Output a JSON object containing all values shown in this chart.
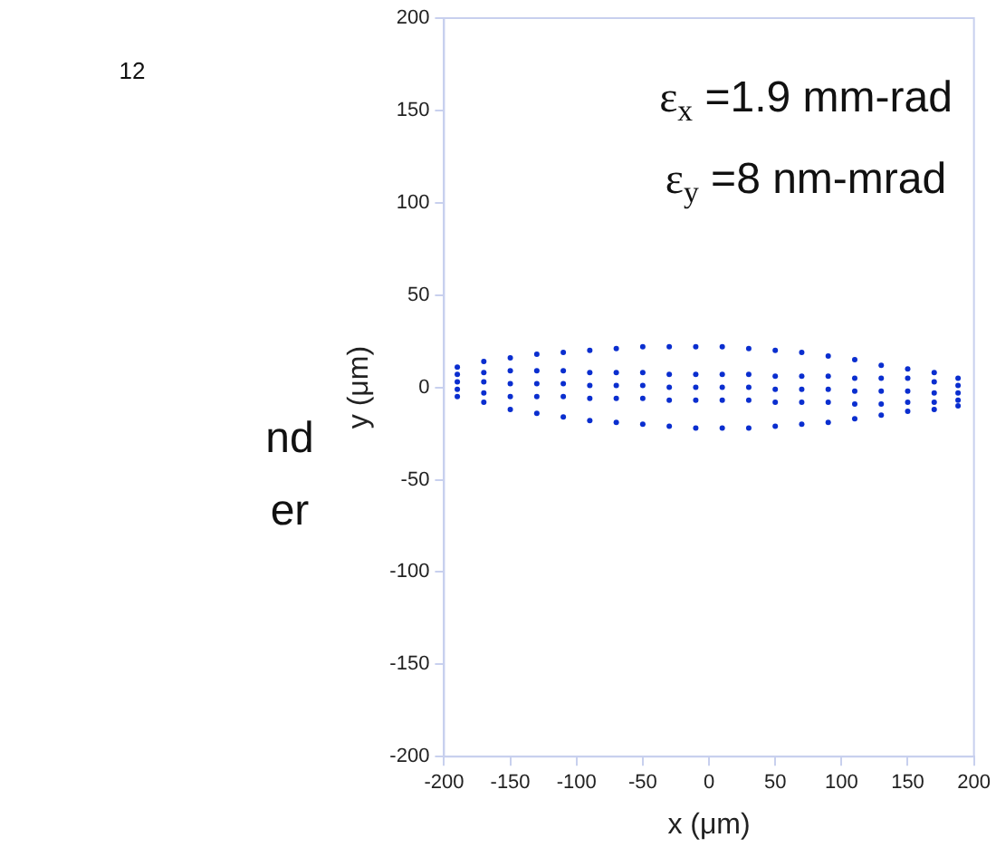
{
  "chart_data": {
    "type": "scatter",
    "xlabel": "x (μm)",
    "ylabel": "y (μm)",
    "annotations": [
      "ε$_{x}$ =1.9 mm-rad",
      "ε$_{y}$ =8 nm-mrad",
      "12",
      "nd",
      "er"
    ],
    "xlim": [
      -200,
      200
    ],
    "xticks": [
      -200,
      -150,
      -100,
      -50,
      0,
      50,
      100,
      150,
      200
    ],
    "ylim": [
      -200,
      200
    ],
    "yticks": [
      -200,
      -150,
      -100,
      -50,
      0,
      50,
      100,
      150,
      200
    ],
    "grid": false,
    "legend": false,
    "marker": "circle",
    "series": [
      {
        "color": "#0a2ecf",
        "x": [
          -190,
          -170,
          -150,
          -130,
          -110,
          -90,
          -70,
          -50,
          -30,
          -10,
          10,
          30,
          50,
          70,
          90,
          110,
          130,
          150,
          170,
          188
        ],
        "values": [
          11,
          14,
          16,
          18,
          19,
          20,
          21,
          22,
          22,
          22,
          22,
          21,
          20,
          19,
          17,
          15,
          12,
          10,
          8,
          5
        ]
      },
      {
        "color": "#0a2ecf",
        "x": [
          -190,
          -170,
          -150,
          -130,
          -110,
          -90,
          -70,
          -50,
          -30,
          -10,
          10,
          30,
          50,
          70,
          90,
          110,
          130,
          150,
          170,
          188
        ],
        "values": [
          7,
          8,
          9,
          9,
          9,
          8,
          8,
          8,
          7,
          7,
          7,
          7,
          6,
          6,
          6,
          5,
          5,
          5,
          3,
          1
        ]
      },
      {
        "color": "#0a2ecf",
        "x": [
          -190,
          -170,
          -150,
          -130,
          -110,
          -90,
          -70,
          -50,
          -30,
          -10,
          10,
          30,
          50,
          70,
          90,
          110,
          130,
          150,
          170,
          188
        ],
        "values": [
          3,
          3,
          2,
          2,
          2,
          1,
          1,
          1,
          0,
          0,
          0,
          0,
          -1,
          -1,
          -1,
          -2,
          -2,
          -2,
          -3,
          -3
        ]
      },
      {
        "color": "#0a2ecf",
        "x": [
          -190,
          -170,
          -150,
          -130,
          -110,
          -90,
          -70,
          -50,
          -30,
          -10,
          10,
          30,
          50,
          70,
          90,
          110,
          130,
          150,
          170,
          188
        ],
        "values": [
          -1,
          -3,
          -5,
          -5,
          -5,
          -6,
          -6,
          -6,
          -7,
          -7,
          -7,
          -7,
          -8,
          -8,
          -8,
          -9,
          -9,
          -8,
          -8,
          -7
        ]
      },
      {
        "color": "#0a2ecf",
        "x": [
          -190,
          -170,
          -150,
          -130,
          -110,
          -90,
          -70,
          -50,
          -30,
          -10,
          10,
          30,
          50,
          70,
          90,
          110,
          130,
          150,
          170,
          188
        ],
        "values": [
          -5,
          -8,
          -12,
          -14,
          -16,
          -18,
          -19,
          -20,
          -21,
          -22,
          -22,
          -22,
          -21,
          -20,
          -19,
          -17,
          -15,
          -13,
          -12,
          -10
        ]
      }
    ]
  }
}
